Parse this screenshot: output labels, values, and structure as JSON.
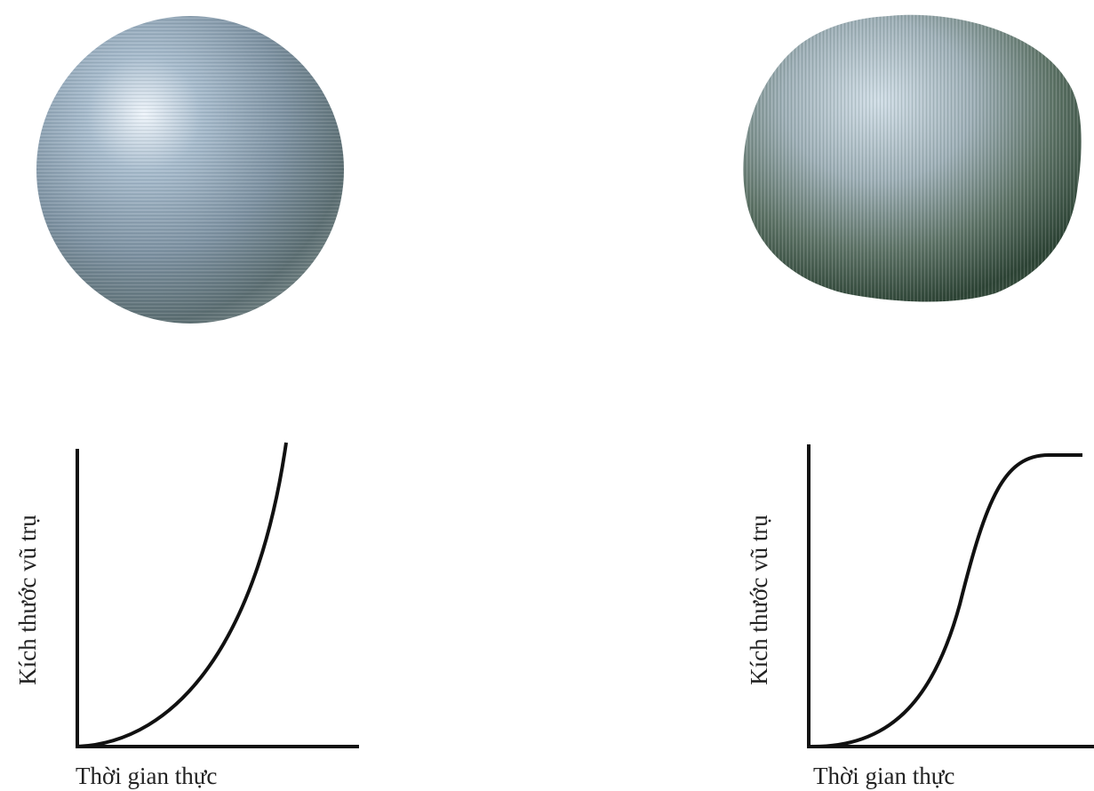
{
  "left": {
    "y_label": "Kích thước vũ trụ",
    "x_label": "Thời gian thực"
  },
  "right": {
    "y_label": "Kích thước vũ trụ",
    "x_label": "Thời gian thực"
  }
}
